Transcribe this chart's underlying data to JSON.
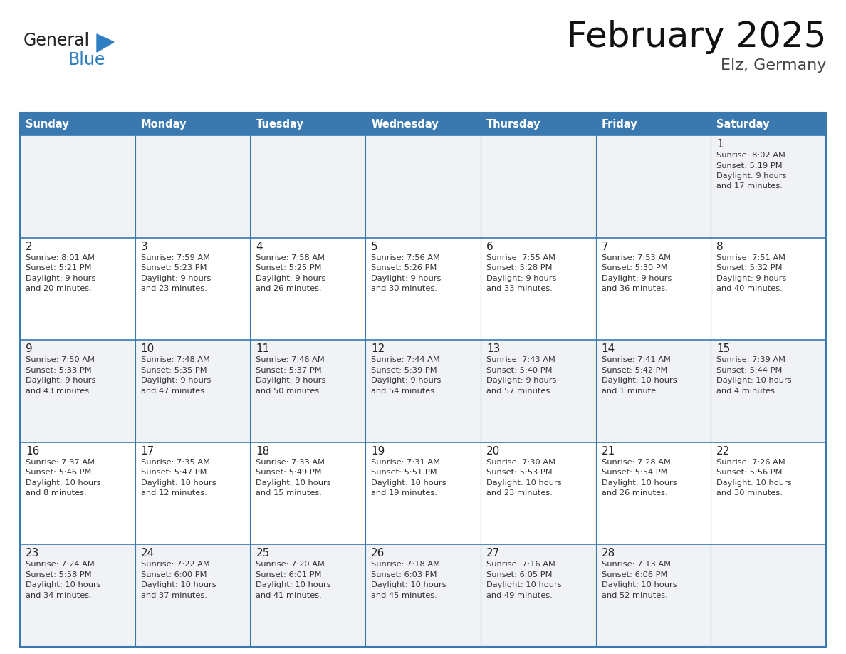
{
  "title": "February 2025",
  "subtitle": "Elz, Germany",
  "header_bg": "#3A78B0",
  "header_text_color": "#FFFFFF",
  "days_of_week": [
    "Sunday",
    "Monday",
    "Tuesday",
    "Wednesday",
    "Thursday",
    "Friday",
    "Saturday"
  ],
  "grid_line_color": "#3A78B0",
  "cell_bg_white": "#FFFFFF",
  "cell_bg_gray": "#F0F2F5",
  "day_number_color": "#222222",
  "info_text_color": "#333333",
  "logo_general_color": "#222222",
  "logo_blue_color": "#2E7EC2",
  "logo_triangle_color": "#2E7EC2",
  "calendar_data": [
    {
      "day": 1,
      "row": 0,
      "col": 6,
      "sunrise": "8:02 AM",
      "sunset": "5:19 PM",
      "daylight_line3": "Daylight: 9 hours",
      "daylight_line4": "and 17 minutes."
    },
    {
      "day": 2,
      "row": 1,
      "col": 0,
      "sunrise": "8:01 AM",
      "sunset": "5:21 PM",
      "daylight_line3": "Daylight: 9 hours",
      "daylight_line4": "and 20 minutes."
    },
    {
      "day": 3,
      "row": 1,
      "col": 1,
      "sunrise": "7:59 AM",
      "sunset": "5:23 PM",
      "daylight_line3": "Daylight: 9 hours",
      "daylight_line4": "and 23 minutes."
    },
    {
      "day": 4,
      "row": 1,
      "col": 2,
      "sunrise": "7:58 AM",
      "sunset": "5:25 PM",
      "daylight_line3": "Daylight: 9 hours",
      "daylight_line4": "and 26 minutes."
    },
    {
      "day": 5,
      "row": 1,
      "col": 3,
      "sunrise": "7:56 AM",
      "sunset": "5:26 PM",
      "daylight_line3": "Daylight: 9 hours",
      "daylight_line4": "and 30 minutes."
    },
    {
      "day": 6,
      "row": 1,
      "col": 4,
      "sunrise": "7:55 AM",
      "sunset": "5:28 PM",
      "daylight_line3": "Daylight: 9 hours",
      "daylight_line4": "and 33 minutes."
    },
    {
      "day": 7,
      "row": 1,
      "col": 5,
      "sunrise": "7:53 AM",
      "sunset": "5:30 PM",
      "daylight_line3": "Daylight: 9 hours",
      "daylight_line4": "and 36 minutes."
    },
    {
      "day": 8,
      "row": 1,
      "col": 6,
      "sunrise": "7:51 AM",
      "sunset": "5:32 PM",
      "daylight_line3": "Daylight: 9 hours",
      "daylight_line4": "and 40 minutes."
    },
    {
      "day": 9,
      "row": 2,
      "col": 0,
      "sunrise": "7:50 AM",
      "sunset": "5:33 PM",
      "daylight_line3": "Daylight: 9 hours",
      "daylight_line4": "and 43 minutes."
    },
    {
      "day": 10,
      "row": 2,
      "col": 1,
      "sunrise": "7:48 AM",
      "sunset": "5:35 PM",
      "daylight_line3": "Daylight: 9 hours",
      "daylight_line4": "and 47 minutes."
    },
    {
      "day": 11,
      "row": 2,
      "col": 2,
      "sunrise": "7:46 AM",
      "sunset": "5:37 PM",
      "daylight_line3": "Daylight: 9 hours",
      "daylight_line4": "and 50 minutes."
    },
    {
      "day": 12,
      "row": 2,
      "col": 3,
      "sunrise": "7:44 AM",
      "sunset": "5:39 PM",
      "daylight_line3": "Daylight: 9 hours",
      "daylight_line4": "and 54 minutes."
    },
    {
      "day": 13,
      "row": 2,
      "col": 4,
      "sunrise": "7:43 AM",
      "sunset": "5:40 PM",
      "daylight_line3": "Daylight: 9 hours",
      "daylight_line4": "and 57 minutes."
    },
    {
      "day": 14,
      "row": 2,
      "col": 5,
      "sunrise": "7:41 AM",
      "sunset": "5:42 PM",
      "daylight_line3": "Daylight: 10 hours",
      "daylight_line4": "and 1 minute."
    },
    {
      "day": 15,
      "row": 2,
      "col": 6,
      "sunrise": "7:39 AM",
      "sunset": "5:44 PM",
      "daylight_line3": "Daylight: 10 hours",
      "daylight_line4": "and 4 minutes."
    },
    {
      "day": 16,
      "row": 3,
      "col": 0,
      "sunrise": "7:37 AM",
      "sunset": "5:46 PM",
      "daylight_line3": "Daylight: 10 hours",
      "daylight_line4": "and 8 minutes."
    },
    {
      "day": 17,
      "row": 3,
      "col": 1,
      "sunrise": "7:35 AM",
      "sunset": "5:47 PM",
      "daylight_line3": "Daylight: 10 hours",
      "daylight_line4": "and 12 minutes."
    },
    {
      "day": 18,
      "row": 3,
      "col": 2,
      "sunrise": "7:33 AM",
      "sunset": "5:49 PM",
      "daylight_line3": "Daylight: 10 hours",
      "daylight_line4": "and 15 minutes."
    },
    {
      "day": 19,
      "row": 3,
      "col": 3,
      "sunrise": "7:31 AM",
      "sunset": "5:51 PM",
      "daylight_line3": "Daylight: 10 hours",
      "daylight_line4": "and 19 minutes."
    },
    {
      "day": 20,
      "row": 3,
      "col": 4,
      "sunrise": "7:30 AM",
      "sunset": "5:53 PM",
      "daylight_line3": "Daylight: 10 hours",
      "daylight_line4": "and 23 minutes."
    },
    {
      "day": 21,
      "row": 3,
      "col": 5,
      "sunrise": "7:28 AM",
      "sunset": "5:54 PM",
      "daylight_line3": "Daylight: 10 hours",
      "daylight_line4": "and 26 minutes."
    },
    {
      "day": 22,
      "row": 3,
      "col": 6,
      "sunrise": "7:26 AM",
      "sunset": "5:56 PM",
      "daylight_line3": "Daylight: 10 hours",
      "daylight_line4": "and 30 minutes."
    },
    {
      "day": 23,
      "row": 4,
      "col": 0,
      "sunrise": "7:24 AM",
      "sunset": "5:58 PM",
      "daylight_line3": "Daylight: 10 hours",
      "daylight_line4": "and 34 minutes."
    },
    {
      "day": 24,
      "row": 4,
      "col": 1,
      "sunrise": "7:22 AM",
      "sunset": "6:00 PM",
      "daylight_line3": "Daylight: 10 hours",
      "daylight_line4": "and 37 minutes."
    },
    {
      "day": 25,
      "row": 4,
      "col": 2,
      "sunrise": "7:20 AM",
      "sunset": "6:01 PM",
      "daylight_line3": "Daylight: 10 hours",
      "daylight_line4": "and 41 minutes."
    },
    {
      "day": 26,
      "row": 4,
      "col": 3,
      "sunrise": "7:18 AM",
      "sunset": "6:03 PM",
      "daylight_line3": "Daylight: 10 hours",
      "daylight_line4": "and 45 minutes."
    },
    {
      "day": 27,
      "row": 4,
      "col": 4,
      "sunrise": "7:16 AM",
      "sunset": "6:05 PM",
      "daylight_line3": "Daylight: 10 hours",
      "daylight_line4": "and 49 minutes."
    },
    {
      "day": 28,
      "row": 4,
      "col": 5,
      "sunrise": "7:13 AM",
      "sunset": "6:06 PM",
      "daylight_line3": "Daylight: 10 hours",
      "daylight_line4": "and 52 minutes."
    }
  ]
}
